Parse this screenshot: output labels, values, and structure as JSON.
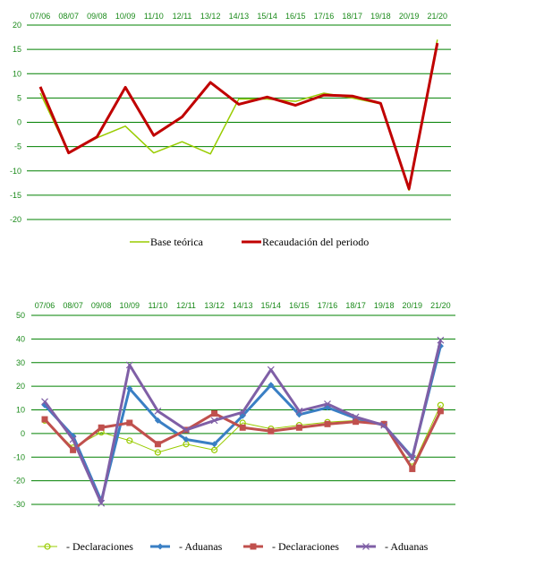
{
  "chart_data": [
    {
      "type": "line",
      "categories": [
        "07/06",
        "08/07",
        "09/08",
        "10/09",
        "11/10",
        "12/11",
        "13/12",
        "14/13",
        "15/14",
        "16/15",
        "17/16",
        "18/17",
        "19/18",
        "20/19",
        "21/20"
      ],
      "ylim": [
        -20,
        20
      ],
      "yticks": [
        20,
        15,
        10,
        5,
        0,
        -5,
        -10,
        -15,
        -20
      ],
      "grid": true,
      "legend_position": "bottom",
      "series": [
        {
          "name": "Base teórica",
          "color": "#99cc00",
          "width": 1.5,
          "marker": "none",
          "values": [
            6,
            -6.3,
            -3.2,
            -0.8,
            -6.3,
            -4,
            -6.5,
            4.8,
            4.8,
            4.3,
            6,
            5,
            3.8,
            -14,
            17
          ]
        },
        {
          "name": "Recaudación del periodo",
          "color": "#c00000",
          "width": 3,
          "marker": "none",
          "values": [
            7.3,
            -6.3,
            -3,
            7.2,
            -2.7,
            1.1,
            8.2,
            3.7,
            5.2,
            3.5,
            5.6,
            5.4,
            3.9,
            -13.7,
            16.3
          ]
        }
      ]
    },
    {
      "type": "line",
      "categories": [
        "07/06",
        "08/07",
        "09/08",
        "10/09",
        "11/10",
        "12/11",
        "13/12",
        "14/13",
        "15/14",
        "16/15",
        "17/16",
        "18/17",
        "19/18",
        "20/19",
        "21/20"
      ],
      "ylim": [
        -30,
        50
      ],
      "yticks": [
        50,
        40,
        30,
        20,
        10,
        0,
        -10,
        -20,
        -30
      ],
      "grid": true,
      "legend_position": "bottom",
      "series": [
        {
          "name": "- Declaraciones",
          "color": "#99cc00",
          "width": 1,
          "marker": "circle",
          "values": [
            5.5,
            -6,
            0.5,
            -3,
            -8,
            -4.5,
            -7,
            4.5,
            2,
            3.5,
            4.8,
            5.5,
            4,
            -14,
            12
          ]
        },
        {
          "name": "- Aduanas",
          "color": "#3a7fc4",
          "width": 3,
          "marker": "diamond",
          "values": [
            12,
            -1,
            -28.5,
            19,
            5.5,
            -2.5,
            -4.5,
            7.5,
            20.5,
            8,
            11,
            6.5,
            3.5,
            -10,
            37
          ]
        },
        {
          "name": "- Declaraciones",
          "color": "#c0504d",
          "width": 3,
          "marker": "square",
          "values": [
            6,
            -7,
            2.5,
            4.5,
            -4.5,
            1.5,
            8.5,
            2.5,
            1,
            2.5,
            4,
            5,
            4,
            -15,
            9.5
          ]
        },
        {
          "name": "- Aduanas",
          "color": "#7f5fa6",
          "width": 3,
          "marker": "x",
          "values": [
            13.5,
            -2.5,
            -29.5,
            29,
            9.5,
            1.5,
            5.5,
            9,
            27,
            9.5,
            12.5,
            7,
            3.5,
            -10.5,
            39.5
          ]
        }
      ]
    }
  ]
}
